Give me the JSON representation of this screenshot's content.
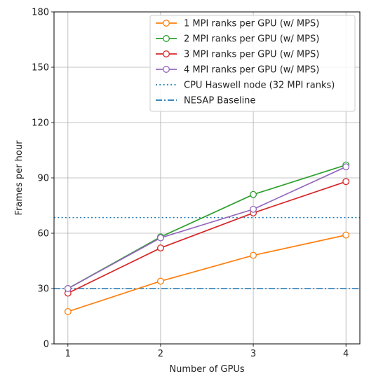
{
  "chart_data": {
    "type": "line",
    "xlabel": "Number of GPUs",
    "ylabel": "Frames per hour",
    "x": [
      1,
      2,
      3,
      4
    ],
    "xlim": [
      0.85,
      4.15
    ],
    "ylim": [
      0,
      180
    ],
    "xticks": [
      "1",
      "2",
      "3",
      "4"
    ],
    "yticks": [
      "0",
      "30",
      "60",
      "90",
      "120",
      "150",
      "180"
    ],
    "grid": true,
    "legend_position": "top-right",
    "series": [
      {
        "name": "1 MPI ranks per GPU (w/ MPS)",
        "values": [
          17.5,
          34,
          48,
          59
        ],
        "color": "#ff7f0e",
        "marker": "circle",
        "style": "solid"
      },
      {
        "name": "2 MPI ranks per GPU (w/ MPS)",
        "values": [
          30,
          58,
          81,
          97
        ],
        "color": "#2ca02c",
        "marker": "circle",
        "style": "solid"
      },
      {
        "name": "3 MPI ranks per GPU (w/ MPS)",
        "values": [
          27.5,
          52,
          71,
          88
        ],
        "color": "#d62728",
        "marker": "circle",
        "style": "solid"
      },
      {
        "name": "4 MPI ranks per GPU (w/ MPS)",
        "values": [
          30,
          57.5,
          73,
          96
        ],
        "color": "#9467bd",
        "marker": "circle",
        "style": "solid"
      }
    ],
    "reference_lines": [
      {
        "name": "CPU Haswell node (32 MPI ranks)",
        "value": 68.5,
        "color": "#1f77b4",
        "style": "dotted"
      },
      {
        "name": "NESAP Baseline",
        "value": 30,
        "color": "#1f77b4",
        "style": "dashdot"
      }
    ]
  }
}
